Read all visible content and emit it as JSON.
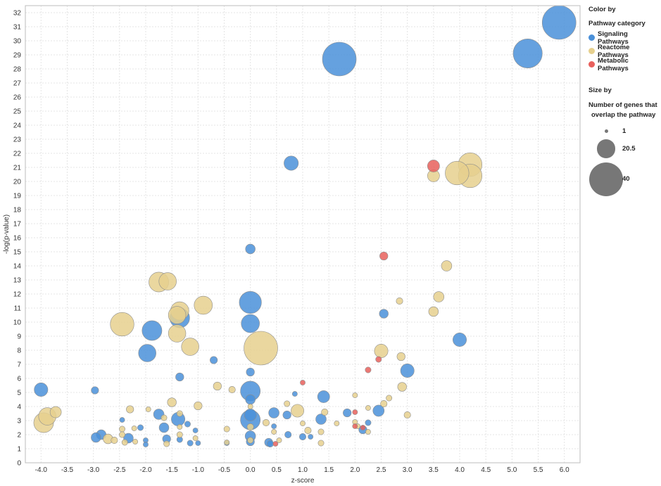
{
  "legend": {
    "color_title": "Color by",
    "color_field": "Pathway category",
    "size_title": "Size by",
    "size_field_line1": "Number of genes that",
    "size_field_line2": "overlap the pathway",
    "size_values": [
      "1",
      "20.5",
      "40"
    ],
    "size_color": "#777777"
  },
  "chart_data": {
    "type": "scatter",
    "xlabel": "z-score",
    "ylabel": "-log(p-value)",
    "xlim": [
      -4.3,
      6.3
    ],
    "ylim": [
      0,
      32.5
    ],
    "x_ticks": [
      "-4.0",
      "-3.5",
      "-3.0",
      "-2.5",
      "-2.0",
      "-1.5",
      "-1.0",
      "-0.5",
      "0.0",
      "0.5",
      "1.0",
      "1.5",
      "2.0",
      "2.5",
      "3.0",
      "3.5",
      "4.0",
      "4.5",
      "5.0",
      "5.5",
      "6.0"
    ],
    "y_ticks": [
      "0",
      "1",
      "2",
      "3",
      "4",
      "5",
      "6",
      "7",
      "8",
      "9",
      "10",
      "11",
      "12",
      "13",
      "14",
      "15",
      "16",
      "17",
      "18",
      "19",
      "20",
      "21",
      "22",
      "23",
      "24",
      "25",
      "26",
      "27",
      "28",
      "29",
      "30",
      "31",
      "32"
    ],
    "grid": true,
    "legend_position": "right",
    "size_range": [
      1,
      40
    ],
    "series": [
      {
        "name": "Signaling Pathways",
        "color": "#4a90d9",
        "points": [
          [
            5.9,
            31.3,
            40
          ],
          [
            5.3,
            29.1,
            34
          ],
          [
            1.7,
            28.7,
            40
          ],
          [
            0.78,
            21.3,
            15
          ],
          [
            0.0,
            15.2,
            9
          ],
          [
            0.0,
            11.4,
            25
          ],
          [
            0.0,
            9.9,
            20
          ],
          [
            -1.35,
            10.3,
            22
          ],
          [
            -1.88,
            9.4,
            22
          ],
          [
            -1.97,
            7.8,
            19
          ],
          [
            -0.7,
            7.3,
            6
          ],
          [
            0.0,
            6.45,
            7
          ],
          [
            -1.35,
            6.1,
            7
          ],
          [
            -4.0,
            5.2,
            14
          ],
          [
            -2.97,
            5.15,
            6
          ],
          [
            0.0,
            5.1,
            22
          ],
          [
            0.0,
            4.5,
            9
          ],
          [
            0.85,
            4.9,
            3
          ],
          [
            1.4,
            4.7,
            12
          ],
          [
            2.55,
            10.6,
            8
          ],
          [
            4.0,
            8.75,
            14
          ],
          [
            3.0,
            6.55,
            14
          ],
          [
            0.0,
            3.4,
            12
          ],
          [
            0.0,
            3.05,
            22
          ],
          [
            0.45,
            3.55,
            10
          ],
          [
            0.7,
            3.4,
            7
          ],
          [
            1.35,
            3.1,
            10
          ],
          [
            1.85,
            3.55,
            7
          ],
          [
            2.45,
            3.7,
            11
          ],
          [
            2.25,
            2.85,
            4
          ],
          [
            2.15,
            2.35,
            7
          ],
          [
            -1.75,
            3.45,
            10
          ],
          [
            -1.38,
            3.1,
            14
          ],
          [
            -1.65,
            2.5,
            9
          ],
          [
            -1.2,
            2.75,
            4
          ],
          [
            -1.05,
            2.3,
            3
          ],
          [
            -2.45,
            3.05,
            3
          ],
          [
            -2.1,
            2.5,
            4
          ],
          [
            -2.85,
            2.0,
            9
          ],
          [
            -2.95,
            1.8,
            9
          ],
          [
            -2.33,
            1.75,
            9
          ],
          [
            -2.0,
            1.6,
            3
          ],
          [
            -1.6,
            1.7,
            7
          ],
          [
            -1.35,
            1.65,
            4
          ],
          [
            -1.15,
            1.4,
            4
          ],
          [
            -1.0,
            1.4,
            3
          ],
          [
            -0.45,
            1.4,
            3
          ],
          [
            0.0,
            1.9,
            10
          ],
          [
            0.0,
            1.5,
            7
          ],
          [
            0.35,
            1.45,
            7
          ],
          [
            0.38,
            1.35,
            5
          ],
          [
            0.72,
            2.0,
            5
          ],
          [
            0.45,
            2.6,
            3
          ],
          [
            1.0,
            1.85,
            5
          ],
          [
            1.15,
            1.85,
            3
          ],
          [
            -2.0,
            1.3,
            3
          ]
        ]
      },
      {
        "name": "Reactome Pathways",
        "color": "#e6d08e",
        "points": [
          [
            4.2,
            21.2,
            27
          ],
          [
            4.2,
            20.4,
            27
          ],
          [
            3.95,
            20.6,
            27
          ],
          [
            3.5,
            20.4,
            12
          ],
          [
            3.75,
            14.0,
            10
          ],
          [
            3.6,
            11.8,
            10
          ],
          [
            3.5,
            10.75,
            9
          ],
          [
            2.85,
            11.5,
            5
          ],
          [
            2.5,
            7.95,
            14
          ],
          [
            2.88,
            7.55,
            7
          ],
          [
            2.9,
            5.4,
            8
          ],
          [
            2.55,
            4.2,
            5
          ],
          [
            2.65,
            4.6,
            4
          ],
          [
            3.0,
            3.4,
            5
          ],
          [
            2.25,
            3.9,
            3
          ],
          [
            2.0,
            4.8,
            3
          ],
          [
            0.2,
            8.15,
            40
          ],
          [
            -0.9,
            11.2,
            20
          ],
          [
            -1.35,
            10.8,
            20
          ],
          [
            -1.4,
            10.5,
            19
          ],
          [
            -1.75,
            12.85,
            22
          ],
          [
            -1.58,
            12.9,
            19
          ],
          [
            -2.45,
            9.85,
            27
          ],
          [
            -1.4,
            9.2,
            19
          ],
          [
            -1.15,
            8.25,
            19
          ],
          [
            -3.95,
            2.85,
            22
          ],
          [
            -3.88,
            3.3,
            19
          ],
          [
            -3.72,
            3.6,
            11
          ],
          [
            -0.63,
            5.45,
            7
          ],
          [
            -0.35,
            5.2,
            5
          ],
          [
            -1.5,
            4.3,
            8
          ],
          [
            -1.0,
            4.05,
            7
          ],
          [
            -2.3,
            3.8,
            6
          ],
          [
            -1.95,
            3.8,
            3
          ],
          [
            -2.45,
            2.4,
            4
          ],
          [
            -2.45,
            2.0,
            4
          ],
          [
            -2.22,
            2.45,
            3
          ],
          [
            -2.6,
            1.6,
            5
          ],
          [
            -2.4,
            1.45,
            4
          ],
          [
            -2.2,
            1.5,
            3
          ],
          [
            -1.65,
            3.2,
            4
          ],
          [
            -1.35,
            3.5,
            4
          ],
          [
            -1.35,
            2.55,
            3
          ],
          [
            -1.35,
            2.0,
            4
          ],
          [
            -1.6,
            1.35,
            4
          ],
          [
            -1.05,
            1.75,
            3
          ],
          [
            -0.45,
            2.4,
            4
          ],
          [
            -0.45,
            1.45,
            3
          ],
          [
            -2.72,
            1.7,
            9
          ],
          [
            0.7,
            4.2,
            4
          ],
          [
            0.9,
            3.7,
            13
          ],
          [
            1.0,
            2.8,
            3
          ],
          [
            1.1,
            2.3,
            5
          ],
          [
            1.35,
            2.2,
            4
          ],
          [
            1.42,
            3.6,
            5
          ],
          [
            1.35,
            1.4,
            4
          ],
          [
            1.65,
            2.8,
            3
          ],
          [
            2.0,
            2.9,
            3
          ],
          [
            2.05,
            2.6,
            3
          ],
          [
            2.25,
            2.2,
            3
          ],
          [
            0.3,
            2.85,
            5
          ],
          [
            0.45,
            2.2,
            3
          ],
          [
            0.0,
            2.55,
            5
          ],
          [
            0.0,
            1.6,
            4
          ],
          [
            0.0,
            4.0,
            3
          ],
          [
            0.55,
            1.6,
            3
          ]
        ]
      },
      {
        "name": "Metabolic Pathways",
        "color": "#e8605c",
        "points": [
          [
            3.5,
            21.1,
            12
          ],
          [
            2.55,
            14.7,
            7
          ],
          [
            2.25,
            6.6,
            4
          ],
          [
            2.45,
            7.35,
            4
          ],
          [
            1.0,
            5.7,
            3
          ],
          [
            2.0,
            3.6,
            3
          ],
          [
            2.15,
            2.5,
            3
          ],
          [
            0.48,
            1.35,
            3
          ],
          [
            2.0,
            2.6,
            3
          ]
        ]
      }
    ]
  }
}
